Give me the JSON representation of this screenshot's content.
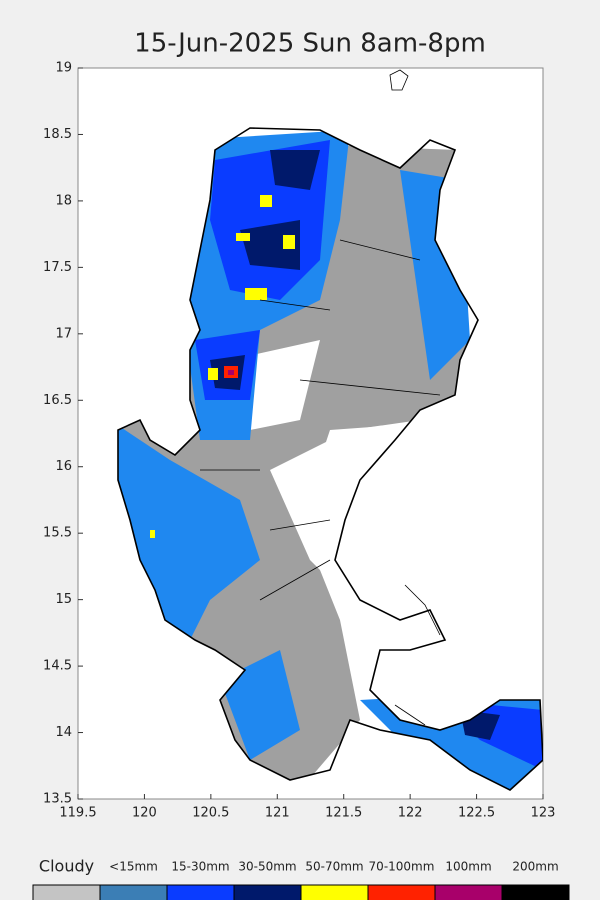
{
  "map": {
    "title": "15-Jun-2025 Sun 8am-8pm",
    "xlim": [
      119.5,
      123
    ],
    "ylim": [
      13.5,
      19
    ],
    "xticks": [
      119.5,
      120,
      120.5,
      121,
      121.5,
      122,
      122.5,
      123
    ],
    "yticks": [
      13.5,
      14,
      14.5,
      15,
      15.5,
      16,
      16.5,
      17,
      17.5,
      18,
      18.5,
      19
    ],
    "legend": [
      {
        "label": "Cloudy",
        "color": "#c4c4c4"
      },
      {
        "label": "<15mm",
        "color": "#3b7eb5"
      },
      {
        "label": "15-30mm",
        "color": "#0a3cff"
      },
      {
        "label": "30-50mm",
        "color": "#00196b"
      },
      {
        "label": "50-70mm",
        "color": "#ffff00"
      },
      {
        "label": "70-100mm",
        "color": "#ff2200"
      },
      {
        "label": "100mm",
        "color": "#a8006a"
      },
      {
        "label": "200mm",
        "color": "#000000"
      }
    ]
  }
}
